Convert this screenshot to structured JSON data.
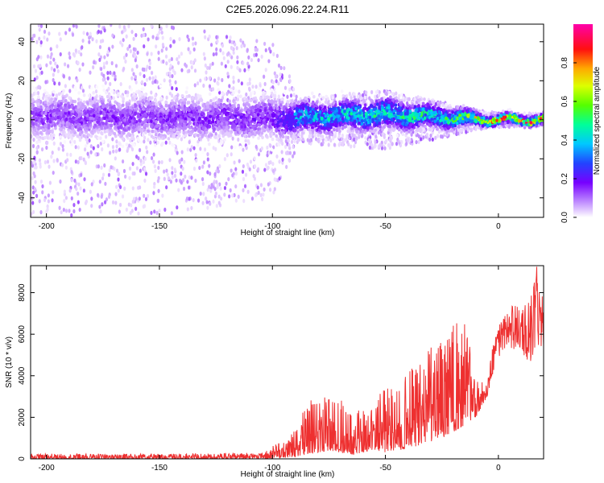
{
  "title": "C2E5.2026.096.22.24.R11",
  "colors": {
    "snr_line": "#ee3030",
    "colormap": [
      "#ffffff",
      "#cc99ff",
      "#8800ff",
      "#3333ff",
      "#00c8ff",
      "#00ff99",
      "#88ff00",
      "#ffff00",
      "#ff8800",
      "#ff0000",
      "#ff00aa"
    ]
  },
  "chart_data": [
    {
      "type": "heatmap",
      "xlabel": "Height of straight line (km)",
      "ylabel": "Frequency (Hz)",
      "xlim": [
        -207,
        20
      ],
      "ylim": [
        -50,
        49
      ],
      "xticks": [
        -200,
        -150,
        -100,
        -50,
        0
      ],
      "xtick_labels": [
        "-200",
        "-150",
        "-100",
        "-50",
        "0"
      ],
      "yticks": [
        -40,
        -20,
        0,
        20,
        40
      ],
      "ytick_labels": [
        "-40",
        "-20",
        "0",
        "20",
        "40"
      ],
      "colorbar": {
        "label": "Normalized spectral amplitude",
        "range": [
          0,
          1
        ],
        "ticks": [
          0,
          0.2,
          0.4,
          0.6,
          0.8
        ],
        "tick_labels": [
          "0.0",
          "0.2",
          "0.4",
          "0.6",
          "0.8"
        ]
      },
      "band_profile": [
        {
          "x": -207,
          "center_hz": 2,
          "halfwidth_hz": 8,
          "amplitude": 0.15,
          "scatter_extent_hz": 49
        },
        {
          "x": -150,
          "center_hz": 1,
          "halfwidth_hz": 8,
          "amplitude": 0.16,
          "scatter_extent_hz": 49
        },
        {
          "x": -100,
          "center_hz": 1,
          "halfwidth_hz": 8,
          "amplitude": 0.18,
          "scatter_extent_hz": 40
        },
        {
          "x": -88,
          "center_hz": 1,
          "halfwidth_hz": 6,
          "amplitude": 0.4,
          "scatter_extent_hz": 12
        },
        {
          "x": -50,
          "center_hz": 3,
          "halfwidth_hz": 6,
          "amplitude": 0.45,
          "scatter_extent_hz": 15
        },
        {
          "x": -20,
          "center_hz": 1,
          "halfwidth_hz": 4,
          "amplitude": 0.5,
          "scatter_extent_hz": 8
        },
        {
          "x": -5,
          "center_hz": 0,
          "halfwidth_hz": 2,
          "amplitude": 0.75,
          "scatter_extent_hz": 4
        },
        {
          "x": 20,
          "center_hz": 0,
          "halfwidth_hz": 2,
          "amplitude": 0.9,
          "scatter_extent_hz": 3
        }
      ]
    },
    {
      "type": "line",
      "xlabel": "Height of straight line (km)",
      "ylabel": "SNR (10 * v/v)",
      "xlim": [
        -207,
        20
      ],
      "ylim": [
        0,
        9300
      ],
      "xticks": [
        -200,
        -150,
        -100,
        -50,
        0
      ],
      "xtick_labels": [
        "-200",
        "-150",
        "-100",
        "-50",
        "0"
      ],
      "yticks": [
        0,
        2000,
        4000,
        6000,
        8000
      ],
      "ytick_labels": [
        "0",
        "2000",
        "4000",
        "6000",
        "8000"
      ],
      "series": [
        {
          "name": "SNR",
          "envelope_x": [
            -207,
            -150,
            -107,
            -100,
            -90,
            -85,
            -80,
            -75,
            -70,
            -65,
            -60,
            -55,
            -50,
            -45,
            -40,
            -35,
            -30,
            -25,
            -20,
            -15,
            -10,
            -5,
            -2,
            0,
            2,
            5,
            8,
            10,
            12,
            15,
            17,
            20
          ],
          "envelope_base": [
            0,
            0,
            0,
            0,
            100,
            200,
            300,
            400,
            300,
            200,
            300,
            400,
            300,
            400,
            500,
            600,
            800,
            1000,
            1300,
            1600,
            2000,
            3000,
            4200,
            4800,
            5100,
            5300,
            5200,
            5000,
            4700,
            4600,
            4900,
            5200
          ],
          "envelope_peak": [
            250,
            250,
            300,
            600,
            1400,
            2700,
            3000,
            3100,
            3200,
            2600,
            2400,
            3000,
            3500,
            3700,
            4200,
            4700,
            5400,
            5600,
            6500,
            6800,
            4000,
            3600,
            5800,
            6900,
            7000,
            7300,
            7500,
            7000,
            7600,
            8000,
            9300,
            7600
          ]
        }
      ]
    }
  ]
}
